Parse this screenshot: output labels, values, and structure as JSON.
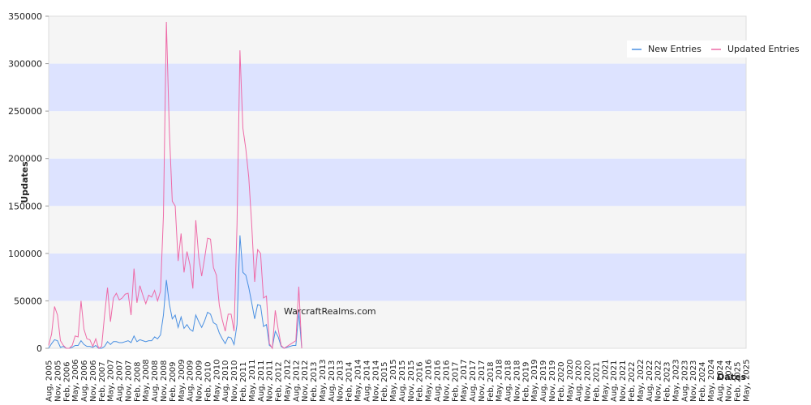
{
  "chart_data": {
    "type": "line",
    "y_label": "Updates",
    "x_label": "Dates",
    "annotation": "WarcraftRealms.com",
    "ylim": [
      0,
      350000
    ],
    "yticks": [
      0,
      50000,
      100000,
      150000,
      200000,
      250000,
      300000,
      350000
    ],
    "band_colors": [
      "#f5f5f5",
      "#dde3ff"
    ],
    "legend": "top-right",
    "categories": [
      "Aug, 2005",
      null,
      null,
      "Nov, 2005",
      null,
      null,
      "Feb, 2006",
      null,
      null,
      "May, 2006",
      null,
      null,
      "Aug, 2006",
      null,
      null,
      "Nov, 2006",
      null,
      null,
      "Feb, 2007",
      null,
      null,
      "May, 2007",
      null,
      null,
      "Aug, 2007",
      null,
      null,
      "Nov, 2007",
      null,
      null,
      "Feb, 2008",
      null,
      null,
      "May, 2008",
      null,
      null,
      "Aug, 2008",
      null,
      null,
      "Nov, 2008",
      null,
      null,
      "Feb, 2009",
      null,
      null,
      "May, 2009",
      null,
      null,
      "Aug, 2009",
      null,
      null,
      "Nov, 2009",
      null,
      null,
      "Feb, 2010",
      null,
      null,
      "May, 2010",
      null,
      null,
      "Aug, 2010",
      null,
      null,
      "Nov, 2010",
      null,
      null,
      "Feb, 2011",
      null,
      null,
      "May, 2011",
      null,
      null,
      "Aug, 2011",
      null,
      null,
      "Nov, 2011",
      null,
      null,
      "Feb, 2012",
      null,
      null,
      "May, 2012",
      null,
      null,
      "Aug, 2012",
      null,
      null,
      "Nov, 2012",
      null,
      null,
      "Feb, 2013",
      null,
      null,
      "May, 2013",
      null,
      null,
      "Aug, 2013",
      null,
      null,
      "Nov, 2013",
      null,
      null,
      "Feb, 2014",
      null,
      null,
      "May, 2014",
      null,
      null,
      "Aug, 2014",
      null,
      null,
      "Nov, 2014",
      null,
      null,
      "Feb, 2015",
      null,
      null,
      "May, 2015",
      null,
      null,
      "Aug, 2015",
      null,
      null,
      "Nov, 2015",
      null,
      null,
      "Feb, 2016",
      null,
      null,
      "May, 2016",
      null,
      null,
      "Aug, 2016",
      null,
      null,
      "Nov, 2016",
      null,
      null,
      "Feb, 2017",
      null,
      null,
      "May, 2017",
      null,
      null,
      "Aug, 2017",
      null,
      null,
      "Nov, 2017",
      null,
      null,
      "Feb, 2018",
      null,
      null,
      "May, 2018",
      null,
      null,
      "Aug, 2018",
      null,
      null,
      "Nov, 2018",
      null,
      null,
      "Feb, 2019",
      null,
      null,
      "May, 2019",
      null,
      null,
      "Aug, 2019",
      null,
      null,
      "Nov, 2019",
      null,
      null,
      "Feb, 2020",
      null,
      null,
      "May, 2020",
      null,
      null,
      "Aug, 2020",
      null,
      null,
      "Nov, 2020",
      null,
      null,
      "Feb, 2021",
      null,
      null,
      "May, 2021",
      null,
      null,
      "Aug, 2021",
      null,
      null,
      "Nov, 2021",
      null,
      null,
      "Feb, 2022",
      null,
      null,
      "May, 2022",
      null,
      null,
      "Aug, 2022",
      null,
      null,
      "Nov, 2022",
      null,
      null,
      "Feb, 2023",
      null,
      null,
      "May, 2023",
      null,
      null,
      "Aug, 2023",
      null,
      null,
      "Nov, 2023",
      null,
      null,
      "Feb, 2024",
      null,
      null,
      "May, 2024",
      null,
      null,
      "Aug, 2024",
      null,
      null,
      "Nov, 2024",
      null,
      null,
      "Feb, 2025",
      null,
      null,
      "May, 2025"
    ],
    "series": [
      {
        "name": "New Entries",
        "color": "#4a90e2",
        "values": [
          0,
          5000,
          9000,
          8000,
          1000,
          2000,
          0,
          0,
          1000,
          3000,
          3000,
          8000,
          4000,
          2000,
          2000,
          1000,
          3000,
          0,
          0,
          2000,
          7000,
          4000,
          7000,
          7000,
          6000,
          6000,
          7000,
          8000,
          6000,
          13000,
          7000,
          9000,
          8000,
          7000,
          8000,
          8000,
          12000,
          10000,
          14000,
          35000,
          72000,
          47000,
          31000,
          35000,
          22000,
          33000,
          21000,
          25000,
          20000,
          18000,
          35000,
          28000,
          22000,
          29000,
          38000,
          36000,
          27000,
          25000,
          16000,
          10000,
          5000,
          12000,
          11000,
          4000,
          25000,
          119000,
          80000,
          77000,
          64000,
          48000,
          31000,
          46000,
          45000,
          23000,
          25000,
          3000,
          1000,
          18000,
          12000,
          2000,
          0,
          1000,
          2000,
          3000,
          3000,
          38000,
          0,
          null,
          null,
          null,
          null,
          null,
          null,
          null,
          null,
          null,
          null,
          null,
          null,
          null,
          null,
          null,
          null,
          null,
          null,
          null,
          null,
          null,
          null,
          null,
          null,
          null,
          null,
          null,
          null,
          null,
          null,
          null,
          null,
          null,
          null,
          null,
          null,
          null,
          null,
          null,
          null,
          null,
          null,
          null,
          null,
          null,
          null,
          null,
          null,
          null,
          null,
          null,
          null,
          null,
          null,
          null,
          null,
          null,
          null,
          null,
          null,
          null,
          null,
          null,
          null,
          null,
          null,
          null,
          null,
          null,
          null,
          null,
          null,
          null,
          null,
          null,
          null,
          null,
          null,
          null,
          null,
          null,
          null,
          null,
          null,
          null,
          null,
          null,
          null,
          null,
          null,
          null,
          null,
          null,
          null,
          null,
          null,
          null,
          null,
          null,
          null,
          null,
          null,
          null,
          null,
          null,
          null,
          null,
          null,
          null,
          null,
          null,
          null,
          null,
          null,
          null,
          null,
          null,
          null,
          null,
          null,
          null,
          null,
          null,
          null,
          null,
          null,
          null,
          null,
          null,
          null,
          null,
          null,
          null,
          null,
          null,
          null,
          null,
          null,
          null,
          null,
          null,
          null,
          null,
          null,
          null,
          null,
          null,
          null,
          null,
          null,
          null
        ]
      },
      {
        "name": "Updated Entries",
        "color": "#ee6aa7",
        "values": [
          3000,
          15000,
          44000,
          35000,
          8000,
          3000,
          0,
          0,
          3000,
          13000,
          12000,
          50000,
          20000,
          10000,
          9000,
          2000,
          10000,
          0,
          2000,
          35000,
          64000,
          28000,
          53000,
          58000,
          51000,
          53000,
          57000,
          58000,
          35000,
          84000,
          48000,
          66000,
          56000,
          47000,
          56000,
          54000,
          61000,
          50000,
          60000,
          140000,
          344000,
          230000,
          155000,
          150000,
          92000,
          121000,
          80000,
          102000,
          88000,
          63000,
          135000,
          96000,
          76000,
          95000,
          116000,
          115000,
          85000,
          77000,
          45000,
          30000,
          18000,
          36000,
          36000,
          18000,
          130000,
          314000,
          232000,
          210000,
          180000,
          130000,
          70000,
          104000,
          100000,
          53000,
          55000,
          5000,
          0,
          40000,
          20000,
          3000,
          0,
          2000,
          4000,
          6000,
          8000,
          65000,
          0,
          null,
          null,
          null,
          null,
          null,
          null,
          null,
          null,
          null,
          null,
          null,
          null,
          null,
          null,
          null,
          null,
          null,
          null,
          null,
          null,
          null,
          null,
          null,
          null,
          null,
          null,
          null,
          null,
          null,
          null,
          null,
          null,
          null,
          null,
          null,
          null,
          null,
          null,
          null,
          null,
          null,
          null,
          null,
          null,
          null,
          null,
          null,
          null,
          null,
          null,
          null,
          null,
          null,
          null,
          null,
          null,
          null,
          null,
          null,
          null,
          null,
          null,
          null,
          null,
          null,
          null,
          null,
          null,
          null,
          null,
          null,
          null,
          null,
          null,
          null,
          null,
          null,
          null,
          null,
          null,
          null,
          null,
          null,
          null,
          null,
          null,
          null,
          null,
          null,
          null,
          null,
          null,
          null,
          null,
          null,
          null,
          null,
          null,
          null,
          null,
          null,
          null,
          null,
          null,
          null,
          null,
          null,
          null,
          null,
          null,
          null,
          null,
          null,
          null,
          null,
          null,
          null,
          null,
          null,
          null,
          null,
          null,
          null,
          null,
          null,
          null,
          null,
          null,
          null,
          null,
          null,
          null,
          null,
          null,
          null,
          null,
          null,
          null,
          null,
          null,
          null,
          null,
          null,
          null,
          null,
          null,
          null,
          null,
          null,
          null,
          null
        ]
      }
    ]
  }
}
